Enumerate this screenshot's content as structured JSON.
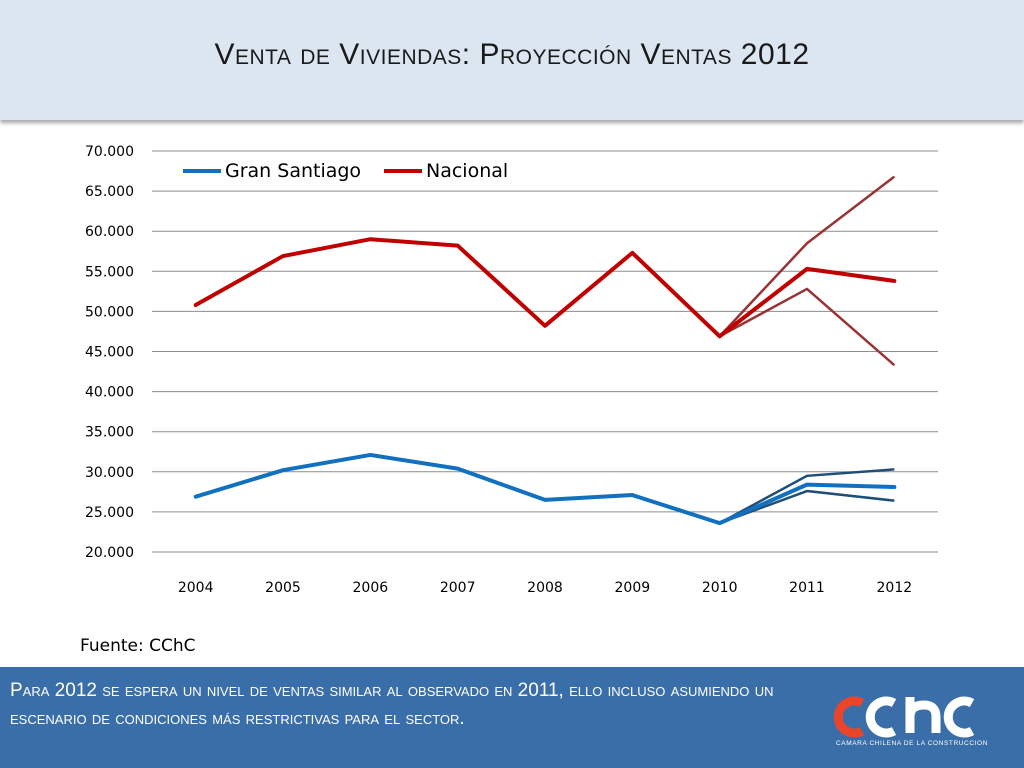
{
  "header": {
    "title": "Venta de Viviendas: Proyección Ventas 2012"
  },
  "source": "Fuente: CChC",
  "footer": {
    "text": "Para 2012 se espera un nivel de ventas similar al observado en 2011, ello incluso asumiendo un escenario de condiciones más restrictivas para el sector.",
    "logo_caption": "CAMARA CHILENA DE LA CONSTRUCCION",
    "logo_text": "cchc"
  },
  "colors": {
    "gran_santiago": "#1170c0",
    "nacional": "#c00000",
    "projection_blue": "#1f4e79",
    "projection_red": "#993333",
    "header_bg": "#dce6f1",
    "footer_bg": "#3a6ea8"
  },
  "chart_data": {
    "type": "line",
    "categories": [
      "2004",
      "2005",
      "2006",
      "2007",
      "2008",
      "2009",
      "2010",
      "2011",
      "2012"
    ],
    "ylim": [
      20000,
      70000
    ],
    "y_ticks": [
      "20.000",
      "25.000",
      "30.000",
      "35.000",
      "40.000",
      "45.000",
      "50.000",
      "55.000",
      "60.000",
      "65.000",
      "70.000"
    ],
    "grid": true,
    "legend_position": "top-left",
    "series": [
      {
        "name": "Gran Santiago",
        "values": [
          26900,
          30200,
          32100,
          30400,
          26500,
          27100,
          23600,
          28400,
          28100
        ]
      },
      {
        "name": "Nacional",
        "values": [
          50800,
          56900,
          59000,
          58200,
          48200,
          57300,
          46900,
          55300,
          53800
        ]
      }
    ],
    "projections": [
      {
        "x": [
          "2010",
          "2011",
          "2012"
        ],
        "values": [
          23600,
          29500,
          30300
        ],
        "color": "projection_blue"
      },
      {
        "x": [
          "2010",
          "2011",
          "2012"
        ],
        "values": [
          23600,
          27600,
          26400
        ],
        "color": "projection_blue"
      },
      {
        "x": [
          "2010",
          "2011",
          "2012"
        ],
        "values": [
          46900,
          58500,
          66800
        ],
        "color": "projection_red"
      },
      {
        "x": [
          "2010",
          "2011",
          "2012"
        ],
        "values": [
          46900,
          52800,
          43300
        ],
        "color": "projection_red"
      }
    ]
  }
}
